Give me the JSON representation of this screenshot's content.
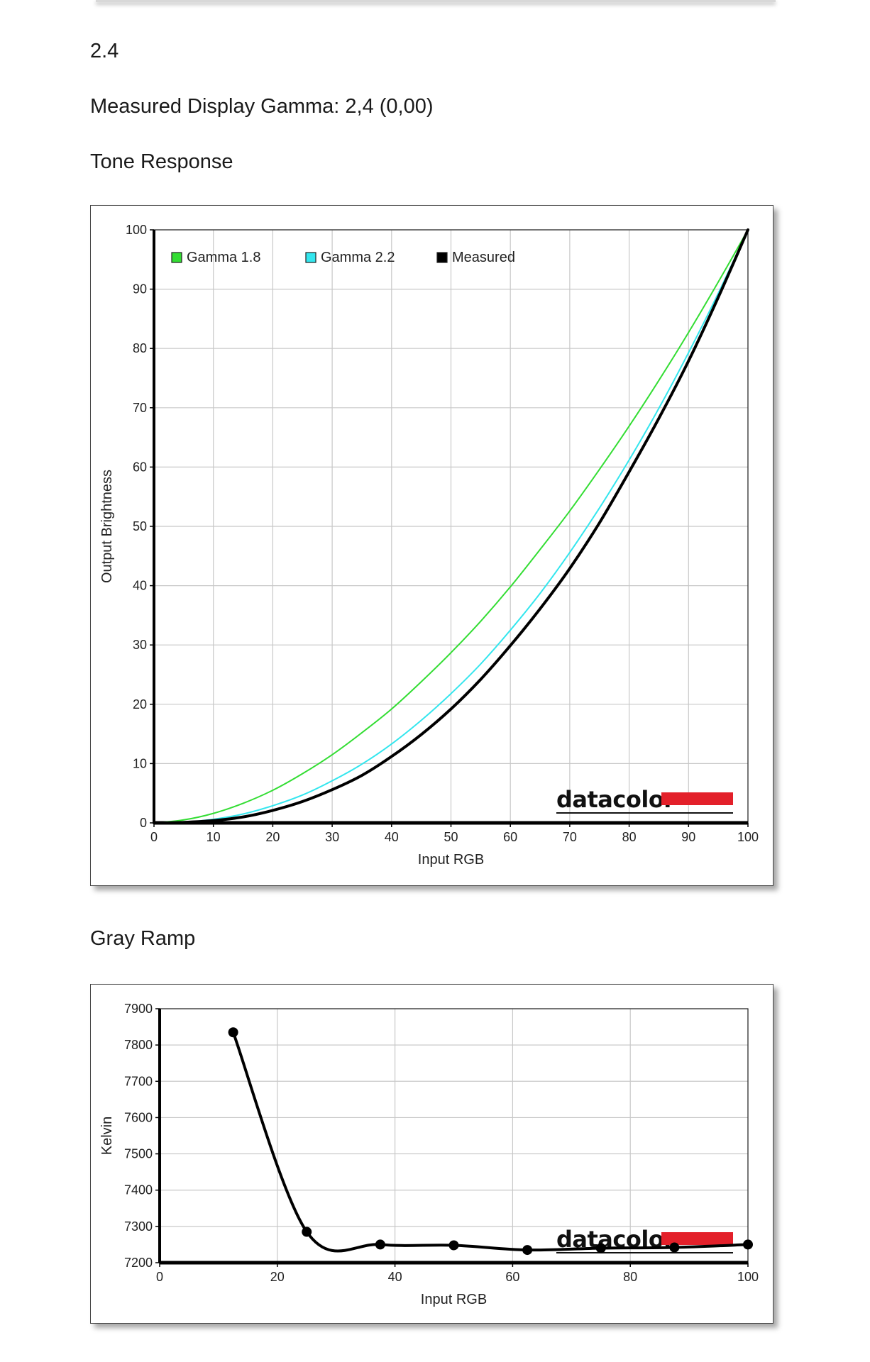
{
  "header": {
    "gamma_target": "2.4",
    "measured_gamma_text": "Measured Display Gamma: 2,4 (0,00)",
    "tone_heading": "Tone Response",
    "gray_heading": "Gray Ramp"
  },
  "brand": {
    "name": "datacolor",
    "accent_color": "#e3202a"
  },
  "colors": {
    "gamma18": "#33dd33",
    "gamma22": "#33e6ee",
    "measured": "#000000",
    "grid": "#c8c8c8"
  },
  "chart_data": [
    {
      "id": "tone",
      "type": "line",
      "title": "",
      "xlabel": "Input RGB",
      "ylabel": "Output Brightness",
      "xlim": [
        0,
        100
      ],
      "ylim": [
        0,
        100
      ],
      "xticks": [
        0,
        10,
        20,
        30,
        40,
        50,
        60,
        70,
        80,
        90,
        100
      ],
      "yticks": [
        0,
        10,
        20,
        30,
        40,
        50,
        60,
        70,
        80,
        90,
        100
      ],
      "grid": true,
      "legend_position": "top-left",
      "series": [
        {
          "name": "Gamma 1.8",
          "color": "#33dd33",
          "x": [
            0,
            5,
            10,
            15,
            20,
            25,
            30,
            35,
            40,
            45,
            50,
            55,
            60,
            65,
            70,
            75,
            80,
            85,
            90,
            95,
            100
          ],
          "y": [
            0,
            0.5,
            1.6,
            3.3,
            5.5,
            8.3,
            11.5,
            15.2,
            19.2,
            23.8,
            28.7,
            34.0,
            39.8,
            46.1,
            52.6,
            59.6,
            66.9,
            74.6,
            82.7,
            91.2,
            100
          ]
        },
        {
          "name": "Gamma 2.2",
          "color": "#33e6ee",
          "x": [
            0,
            5,
            10,
            15,
            20,
            25,
            30,
            35,
            40,
            45,
            50,
            55,
            60,
            65,
            70,
            75,
            80,
            85,
            90,
            95,
            100
          ],
          "y": [
            0,
            0.1,
            0.6,
            1.5,
            2.9,
            4.7,
            7.1,
            9.9,
            13.3,
            17.3,
            21.8,
            26.8,
            32.5,
            38.7,
            45.6,
            53.1,
            61.2,
            69.9,
            79.3,
            89.3,
            100
          ]
        },
        {
          "name": "Measured",
          "color": "#000000",
          "x": [
            0,
            5,
            10,
            15,
            20,
            25,
            30,
            35,
            40,
            45,
            50,
            55,
            60,
            65,
            70,
            75,
            80,
            85,
            90,
            95,
            100
          ],
          "y": [
            0,
            0.1,
            0.4,
            1.0,
            2.1,
            3.6,
            5.6,
            8.0,
            11.2,
            14.9,
            19.2,
            24.2,
            29.9,
            36.1,
            42.9,
            50.6,
            59.2,
            68.2,
            77.9,
            88.6,
            100
          ]
        }
      ]
    },
    {
      "id": "gray",
      "type": "line",
      "title": "",
      "xlabel": "Input RGB",
      "ylabel": "Kelvin",
      "xlim": [
        0,
        100
      ],
      "ylim": [
        7200,
        7900
      ],
      "xticks": [
        0,
        20,
        40,
        60,
        80,
        100
      ],
      "yticks": [
        7200,
        7300,
        7400,
        7500,
        7600,
        7700,
        7800,
        7900
      ],
      "grid": true,
      "series": [
        {
          "name": "",
          "color": "#000000",
          "x": [
            12.5,
            25,
            37.5,
            50,
            62.5,
            75,
            87.5,
            100
          ],
          "y": [
            7835,
            7285,
            7250,
            7248,
            7235,
            7240,
            7242,
            7250
          ]
        }
      ]
    }
  ]
}
